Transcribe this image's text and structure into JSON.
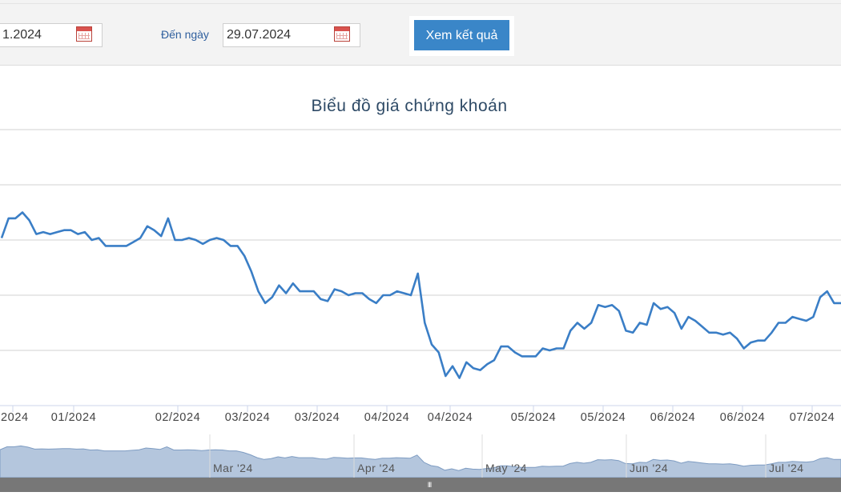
{
  "filter": {
    "from_value": "1.2024",
    "to_label": "Đến ngày",
    "to_value": "29.07.2024",
    "submit_label": "Xem kết quả"
  },
  "icons": {
    "calendar": "calendar-icon",
    "scroll_grip": "grip-icon"
  },
  "colors": {
    "line": "#3a7ec6",
    "button": "#3a86c8",
    "navigator_fill": "#b4c6dd",
    "navigator_line": "#7e9cc2",
    "scrollbar": "#777777"
  },
  "chart_data": {
    "type": "line",
    "title": "Biểu đồ giá chứng khoán",
    "xlabel": "",
    "ylabel": "",
    "y_axis_labels_visible": false,
    "grid": true,
    "y_gridlines": 5,
    "x_tick_labels": [
      ".2024",
      "01/2024",
      "02/2024",
      "03/2024",
      "03/2024",
      "04/2024",
      "04/2024",
      "05/2024",
      "05/2024",
      "06/2024",
      "06/2024",
      "07/2024"
    ],
    "series": [
      {
        "values": [
          72.5,
          77.5,
          77.5,
          79.0,
          77.0,
          73.5,
          74.0,
          73.5,
          74.0,
          74.5,
          74.5,
          73.5,
          74.0,
          72.0,
          72.5,
          70.5,
          70.5,
          70.5,
          70.5,
          71.5,
          72.5,
          75.5,
          74.5,
          73.0,
          77.5,
          72.0,
          72.0,
          72.5,
          72.0,
          71.0,
          72.0,
          72.5,
          72.0,
          70.5,
          70.5,
          68.0,
          64.0,
          59.0,
          56.0,
          57.5,
          60.5,
          58.5,
          61.0,
          59.0,
          59.0,
          59.0,
          57.0,
          56.5,
          59.5,
          59.0,
          58.0,
          58.5,
          58.5,
          57.0,
          56.0,
          58.0,
          58.0,
          59.0,
          58.5,
          58.0,
          63.5,
          51.0,
          45.5,
          43.5,
          37.5,
          40.0,
          37.0,
          41.0,
          39.5,
          39.0,
          40.5,
          41.5,
          45.0,
          45.0,
          43.5,
          42.5,
          42.5,
          42.5,
          44.5,
          44.0,
          44.5,
          44.5,
          49.0,
          51.0,
          49.5,
          51.0,
          55.5,
          55.0,
          55.5,
          54.0,
          49.0,
          48.5,
          51.0,
          50.5,
          56.0,
          54.5,
          55.0,
          53.5,
          49.5,
          52.5,
          51.5,
          50.0,
          48.5,
          48.5,
          48.0,
          48.5,
          47.0,
          44.5,
          46.0,
          46.5,
          46.5,
          48.5,
          51.0,
          51.0,
          52.5,
          52.0,
          51.5,
          52.5,
          57.5,
          59.0,
          56.0,
          56.0
        ]
      }
    ],
    "navigator": {
      "x_tick_labels": [
        "Mar '24",
        "Apr '24",
        "May '24",
        "Jun '24",
        "Jul '24"
      ],
      "grip_label": "III"
    }
  }
}
